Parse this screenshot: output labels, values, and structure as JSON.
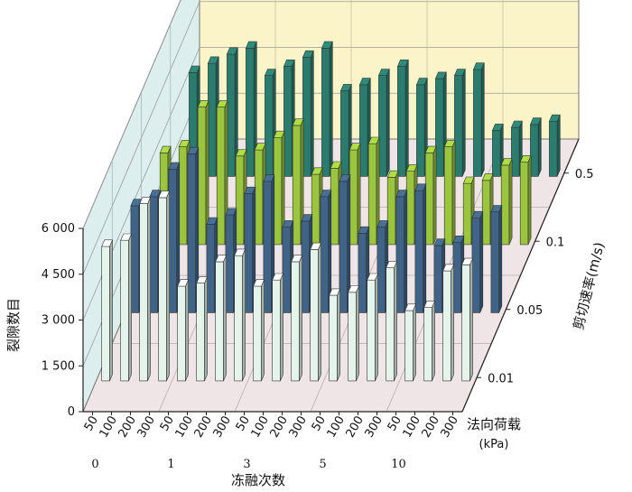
{
  "chart_data": {
    "type": "bar3d",
    "zlabel": "裂隙数目",
    "xlabel": "冻融次数",
    "ylabel": "剪切速率(m/s)",
    "load_label": "法向荷载",
    "load_unit": "(kPa)",
    "z_ticks": [
      "0",
      "1 500",
      "3 000",
      "4 500",
      "6 000"
    ],
    "zlim": [
      0,
      6000
    ],
    "freeze_thaw_cycles": [
      "0",
      "1",
      "3",
      "5",
      "10"
    ],
    "normal_loads": [
      "50",
      "100",
      "200",
      "300"
    ],
    "shear_rates": [
      "0.01",
      "0.05",
      "0.1",
      "0.5"
    ],
    "colors": [
      "#e4f4ea",
      "#3f6488",
      "#9bc53d",
      "#2a7d6e"
    ],
    "series": [
      {
        "shear_rate": "0.01",
        "values": [
          [
            4400,
            4600,
            5800,
            6000
          ],
          [
            3100,
            3200,
            3900,
            4100
          ],
          [
            3100,
            3300,
            3900,
            4300
          ],
          [
            2800,
            2900,
            3300,
            3700
          ],
          [
            2300,
            2400,
            3600,
            3800
          ]
        ]
      },
      {
        "shear_rate": "0.05",
        "values": [
          [
            3500,
            3800,
            4700,
            5200
          ],
          [
            2900,
            3200,
            3900,
            4300
          ],
          [
            2800,
            3000,
            3800,
            4300
          ],
          [
            2600,
            2800,
            3800,
            4000
          ],
          [
            2200,
            2300,
            3100,
            3300
          ]
        ]
      },
      {
        "shear_rate": "0.1",
        "values": [
          [
            3000,
            3200,
            4500,
            4500
          ],
          [
            2900,
            3100,
            3500,
            3900
          ],
          [
            2300,
            2500,
            3100,
            3300
          ],
          [
            2200,
            2400,
            3000,
            3200
          ],
          [
            2000,
            2100,
            2600,
            2700
          ]
        ]
      },
      {
        "shear_rate": "0.5",
        "values": [
          [
            3400,
            3700,
            4000,
            4200
          ],
          [
            3300,
            3600,
            3900,
            4200
          ],
          [
            2800,
            3000,
            3300,
            3600
          ],
          [
            3000,
            3200,
            3300,
            3500
          ],
          [
            1500,
            1600,
            1700,
            1800
          ]
        ]
      }
    ],
    "grid": true
  }
}
